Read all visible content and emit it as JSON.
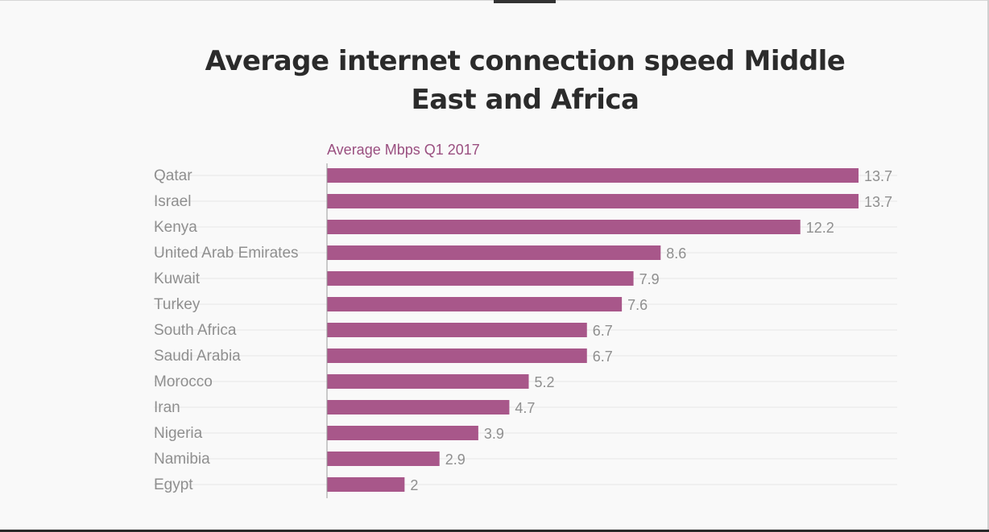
{
  "chart_data": {
    "type": "bar",
    "orientation": "horizontal",
    "title": "Average internet connection speed Middle East and Africa",
    "series_label": "Average Mbps Q1 2017",
    "categories": [
      "Qatar",
      "Israel",
      "Kenya",
      "United Arab Emirates",
      "Kuwait",
      "Turkey",
      "South Africa",
      "Saudi Arabia",
      "Morocco",
      "Iran",
      "Nigeria",
      "Namibia",
      "Egypt"
    ],
    "values": [
      13.7,
      13.7,
      12.2,
      8.6,
      7.9,
      7.6,
      6.7,
      6.7,
      5.2,
      4.7,
      3.9,
      2.9,
      2
    ],
    "value_labels": [
      "13.7",
      "13.7",
      "12.2",
      "8.6",
      "7.9",
      "7.6",
      "6.7",
      "6.7",
      "5.2",
      "4.7",
      "3.9",
      "2.9",
      "2"
    ],
    "xlim": [
      0,
      13.7
    ],
    "bar_color": "#a8578a",
    "label_color": "#8f8f8f",
    "series_label_color": "#9a4f80",
    "grid": true
  }
}
